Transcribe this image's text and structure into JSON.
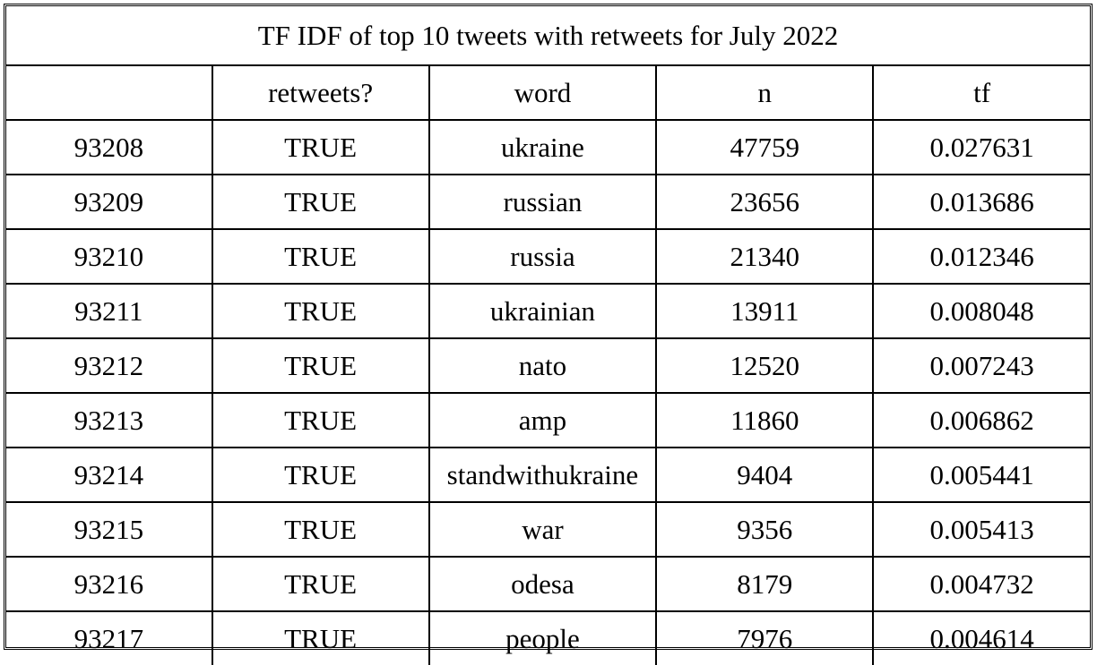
{
  "chart_data": {
    "type": "table",
    "title": "TF IDF of top 10 tweets with retweets for July 2022",
    "columns": [
      "",
      "retweets?",
      "word",
      "n",
      "tf"
    ],
    "rows": [
      {
        "id": "93208",
        "retweets": "TRUE",
        "word": "ukraine",
        "n": "47759",
        "tf": "0.027631"
      },
      {
        "id": "93209",
        "retweets": "TRUE",
        "word": "russian",
        "n": "23656",
        "tf": "0.013686"
      },
      {
        "id": "93210",
        "retweets": "TRUE",
        "word": "russia",
        "n": "21340",
        "tf": "0.012346"
      },
      {
        "id": "93211",
        "retweets": "TRUE",
        "word": "ukrainian",
        "n": "13911",
        "tf": "0.008048"
      },
      {
        "id": "93212",
        "retweets": "TRUE",
        "word": "nato",
        "n": "12520",
        "tf": "0.007243"
      },
      {
        "id": "93213",
        "retweets": "TRUE",
        "word": "amp",
        "n": "11860",
        "tf": "0.006862"
      },
      {
        "id": "93214",
        "retweets": "TRUE",
        "word": "standwithukraine",
        "n": "9404",
        "tf": "0.005441"
      },
      {
        "id": "93215",
        "retweets": "TRUE",
        "word": "war",
        "n": "9356",
        "tf": "0.005413"
      },
      {
        "id": "93216",
        "retweets": "TRUE",
        "word": "odesa",
        "n": "8179",
        "tf": "0.004732"
      },
      {
        "id": "93217",
        "retweets": "TRUE",
        "word": "people",
        "n": "7976",
        "tf": "0.004614"
      }
    ]
  }
}
